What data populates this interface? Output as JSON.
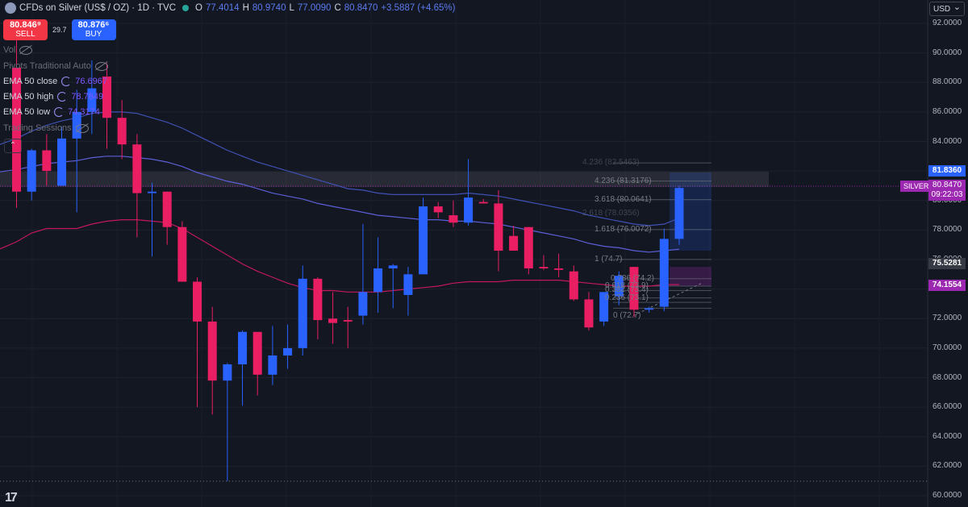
{
  "header": {
    "symbol": "CFDs on Silver (US$ / OZ) · 1D · TVC",
    "open_label": "O",
    "open": "77.4014",
    "high_label": "H",
    "high": "80.9740",
    "low_label": "L",
    "low": "77.0090",
    "close_label": "C",
    "close": "80.8470",
    "change": "+3.5887 (+4.65%)"
  },
  "trade": {
    "sell_price": "80.846⁹",
    "sell_label": "SELL",
    "spread": "29.7",
    "buy_price": "80.876⁶",
    "buy_label": "BUY"
  },
  "indicators": [
    {
      "name": "Vol",
      "value": "",
      "hidden": true
    },
    {
      "name": "Pivots Traditional Auto",
      "value": "",
      "hidden": true
    },
    {
      "name": "EMA 50 close",
      "value": "76.6967",
      "hidden": false
    },
    {
      "name": "EMA 50 high",
      "value": "78.7849",
      "hidden": false
    },
    {
      "name": "EMA 50 low",
      "value": "74.3174",
      "hidden": false
    },
    {
      "name": "Trading Sessions",
      "value": "",
      "hidden": true
    }
  ],
  "currency": "USD",
  "price_axis": [
    "92.0000",
    "90.0000",
    "88.0000",
    "86.0000",
    "84.0000",
    "82.0000",
    "80.0000",
    "78.0000",
    "76.0000",
    "74.0000",
    "72.0000",
    "70.0000",
    "68.0000",
    "66.0000",
    "64.0000",
    "62.0000",
    "60.0000"
  ],
  "price_labels": {
    "level_high": "81.8360",
    "silver_tag": "SILVER",
    "silver_price": "80.8470",
    "countdown": "09:22:03",
    "level_mid": "75.5281",
    "level_low": "74.1554"
  },
  "fib_labels": [
    "4.236 (82.5463)",
    "4.236 (81.3176)",
    "3.618 (80.0641)",
    "2.618 (78.0356)",
    "1.618 (76.0072)",
    "1 (74.7)",
    "0.786 (74.2)",
    "0.618 (73.9)",
    "0.382 (73.4)",
    "0.236 (73.1)",
    "0 (72.7)"
  ],
  "colors": {
    "up": "#2962ff",
    "down": "#e91e63",
    "ema_close": "#5b5fd6",
    "ema_high": "#3f51b5",
    "ema_low": "#c2185b",
    "background": "#131722"
  },
  "chart_data": {
    "type": "candlestick",
    "timeframe": "1D",
    "ylim": [
      60,
      92
    ],
    "candles": [
      {
        "o": 89.0,
        "h": 91.8,
        "l": 79.5,
        "c": 80.6
      },
      {
        "o": 80.6,
        "h": 83.5,
        "l": 80.0,
        "c": 83.4
      },
      {
        "o": 83.4,
        "h": 84.5,
        "l": 81.0,
        "c": 82.0
      },
      {
        "o": 81.0,
        "h": 85.0,
        "l": 81.0,
        "c": 84.2
      },
      {
        "o": 84.2,
        "h": 87.5,
        "l": 79.2,
        "c": 86.0
      },
      {
        "o": 86.0,
        "h": 89.5,
        "l": 84.5,
        "c": 87.6
      },
      {
        "o": 88.4,
        "h": 89.3,
        "l": 83.5,
        "c": 85.6
      },
      {
        "o": 85.6,
        "h": 86.8,
        "l": 82.8,
        "c": 83.8
      },
      {
        "o": 83.8,
        "h": 84.5,
        "l": 77.5,
        "c": 80.5
      },
      {
        "o": 80.5,
        "h": 81.2,
        "l": 76.2,
        "c": 80.6
      },
      {
        "o": 80.6,
        "h": 80.6,
        "l": 77.0,
        "c": 78.2
      },
      {
        "o": 78.2,
        "h": 78.6,
        "l": 74.5,
        "c": 74.5
      },
      {
        "o": 74.5,
        "h": 74.8,
        "l": 66.0,
        "c": 71.8
      },
      {
        "o": 71.8,
        "h": 72.8,
        "l": 65.5,
        "c": 67.8
      },
      {
        "o": 67.8,
        "h": 69.0,
        "l": 61.0,
        "c": 68.9
      },
      {
        "o": 68.9,
        "h": 71.2,
        "l": 66.1,
        "c": 71.1
      },
      {
        "o": 71.1,
        "h": 71.0,
        "l": 66.8,
        "c": 68.2
      },
      {
        "o": 68.2,
        "h": 71.5,
        "l": 67.5,
        "c": 69.5
      },
      {
        "o": 69.5,
        "h": 71.6,
        "l": 68.6,
        "c": 70.0
      },
      {
        "o": 70.0,
        "h": 75.6,
        "l": 69.5,
        "c": 74.7
      },
      {
        "o": 74.7,
        "h": 74.8,
        "l": 70.6,
        "c": 71.9
      },
      {
        "o": 72.0,
        "h": 73.8,
        "l": 70.3,
        "c": 71.7
      },
      {
        "o": 71.9,
        "h": 72.8,
        "l": 70.0,
        "c": 71.8
      },
      {
        "o": 72.2,
        "h": 78.4,
        "l": 71.6,
        "c": 73.8
      },
      {
        "o": 73.8,
        "h": 77.5,
        "l": 72.4,
        "c": 75.4
      },
      {
        "o": 75.4,
        "h": 75.7,
        "l": 72.7,
        "c": 75.6
      },
      {
        "o": 73.6,
        "h": 75.5,
        "l": 72.2,
        "c": 75.0
      },
      {
        "o": 75.0,
        "h": 80.2,
        "l": 75.2,
        "c": 79.6
      },
      {
        "o": 79.6,
        "h": 79.9,
        "l": 78.8,
        "c": 79.2
      },
      {
        "o": 79.0,
        "h": 80.0,
        "l": 78.2,
        "c": 78.5
      },
      {
        "o": 78.5,
        "h": 82.8,
        "l": 78.3,
        "c": 80.2
      },
      {
        "o": 79.9,
        "h": 80.1,
        "l": 79.8,
        "c": 79.8
      },
      {
        "o": 79.8,
        "h": 80.7,
        "l": 75.2,
        "c": 76.6
      },
      {
        "o": 77.6,
        "h": 78.3,
        "l": 76.9,
        "c": 76.6
      },
      {
        "o": 78.2,
        "h": 78.2,
        "l": 75.0,
        "c": 75.4
      },
      {
        "o": 75.5,
        "h": 76.3,
        "l": 75.3,
        "c": 75.4
      },
      {
        "o": 75.4,
        "h": 76.4,
        "l": 74.8,
        "c": 75.3
      },
      {
        "o": 75.2,
        "h": 75.6,
        "l": 73.2,
        "c": 73.3
      },
      {
        "o": 73.3,
        "h": 73.8,
        "l": 71.2,
        "c": 71.4
      },
      {
        "o": 71.8,
        "h": 73.8,
        "l": 71.5,
        "c": 73.8
      },
      {
        "o": 73.5,
        "h": 75.2,
        "l": 72.9,
        "c": 74.9
      },
      {
        "o": 75.5,
        "h": 75.5,
        "l": 72.1,
        "c": 72.6
      },
      {
        "o": 72.6,
        "h": 72.8,
        "l": 72.4,
        "c": 72.7
      },
      {
        "o": 72.8,
        "h": 78.1,
        "l": 72.5,
        "c": 77.4
      },
      {
        "o": 77.4,
        "h": 81.0,
        "l": 77.0,
        "c": 80.85
      }
    ],
    "ema_close": [
      82.1,
      82.3,
      82.5,
      82.6,
      82.7,
      82.9,
      83.0,
      83.0,
      82.9,
      82.8,
      82.6,
      82.3,
      81.9,
      81.6,
      81.3,
      81.1,
      80.8,
      80.5,
      80.3,
      80.1,
      79.8,
      79.6,
      79.4,
      79.2,
      79.0,
      78.9,
      78.8,
      78.7,
      78.7,
      78.6,
      78.6,
      78.5,
      78.4,
      78.2,
      78.0,
      77.8,
      77.6,
      77.4,
      77.1,
      76.9,
      76.8,
      76.6,
      76.5,
      76.6,
      76.7
    ],
    "ema_high": [
      84.2,
      84.7,
      85.1,
      85.4,
      85.6,
      85.9,
      86.0,
      86.0,
      85.9,
      85.6,
      85.3,
      84.9,
      84.4,
      83.9,
      83.4,
      83.0,
      82.6,
      82.3,
      82.0,
      81.7,
      81.4,
      81.1,
      80.8,
      80.7,
      80.5,
      80.4,
      80.4,
      80.4,
      80.4,
      80.4,
      80.5,
      80.4,
      80.3,
      80.1,
      79.9,
      79.7,
      79.5,
      79.3,
      79.0,
      78.8,
      78.6,
      78.4,
      78.3,
      78.4,
      78.8
    ],
    "ema_low": [
      77.2,
      77.8,
      78.1,
      78.1,
      78.1,
      78.4,
      78.6,
      78.7,
      78.7,
      78.6,
      78.5,
      78.1,
      77.5,
      76.9,
      76.3,
      75.7,
      75.2,
      74.8,
      74.4,
      74.1,
      73.9,
      73.9,
      73.8,
      73.8,
      73.8,
      73.9,
      74.0,
      74.1,
      74.2,
      74.4,
      74.5,
      74.5,
      74.5,
      74.6,
      74.6,
      74.6,
      74.6,
      74.5,
      74.4,
      74.3,
      74.2,
      74.2,
      74.2,
      74.3,
      74.3
    ]
  }
}
